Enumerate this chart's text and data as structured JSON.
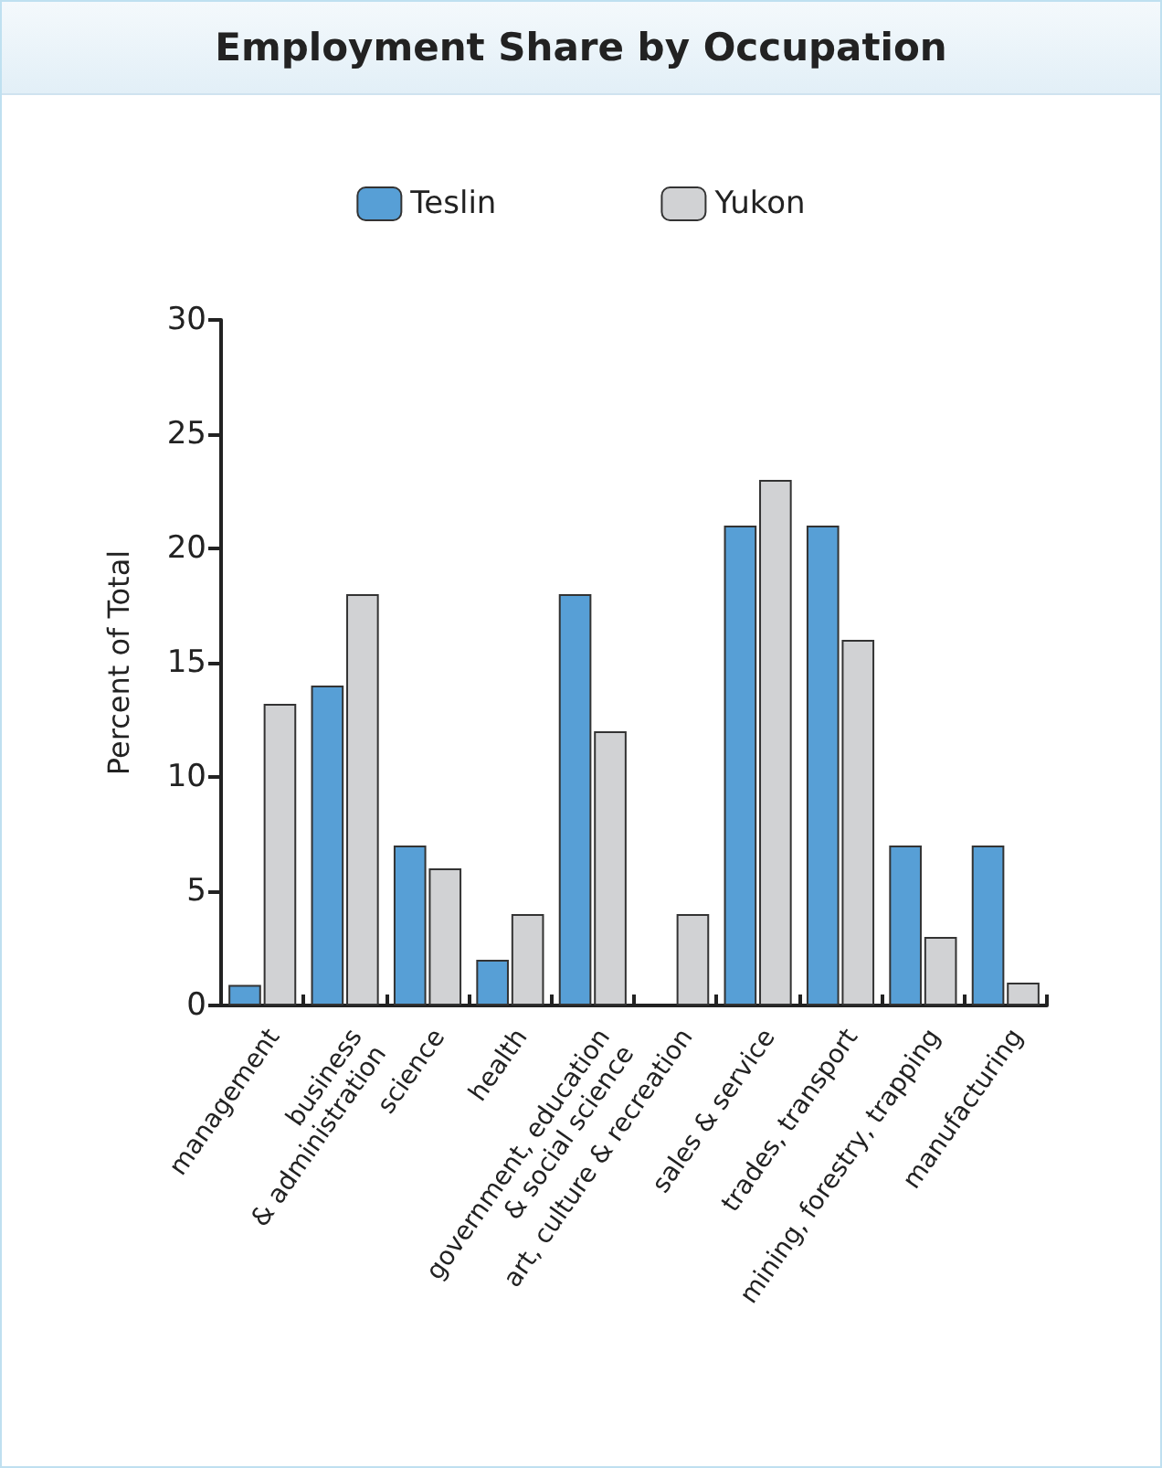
{
  "chart_data": {
    "type": "bar",
    "title": "Employment Share by Occupation",
    "ylabel": "Percent of Total",
    "categories": [
      "management",
      "business\n& administration",
      "science",
      "health",
      "government, education\n& social science",
      "art, culture & recreation",
      "sales & service",
      "trades, transport",
      "mining, forestry, trapping",
      "manufacturing"
    ],
    "series": [
      {
        "name": "Teslin",
        "color": "#579fd6",
        "values": [
          0.9,
          14,
          7,
          2,
          18,
          null,
          21,
          21,
          7,
          7
        ]
      },
      {
        "name": "Yukon",
        "color": "#d1d2d4",
        "values": [
          13.2,
          18,
          6,
          4,
          12,
          4,
          23,
          16,
          3,
          1
        ]
      }
    ],
    "ylim": [
      0,
      30
    ],
    "yticks": [
      0,
      5,
      10,
      15,
      20,
      25,
      30
    ],
    "grid": false,
    "legend": "top"
  }
}
